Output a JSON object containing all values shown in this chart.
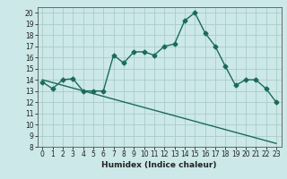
{
  "xlabel": "Humidex (Indice chaleur)",
  "xlim": [
    -0.5,
    23.5
  ],
  "ylim": [
    8,
    20.5
  ],
  "yticks": [
    8,
    9,
    10,
    11,
    12,
    13,
    14,
    15,
    16,
    17,
    18,
    19,
    20
  ],
  "xticks": [
    0,
    1,
    2,
    3,
    4,
    5,
    6,
    7,
    8,
    9,
    10,
    11,
    12,
    13,
    14,
    15,
    16,
    17,
    18,
    19,
    20,
    21,
    22,
    23
  ],
  "bg_color": "#cce8e8",
  "grid_color": "#aacccc",
  "line_color": "#1a6b5a",
  "curve1_x": [
    0,
    1,
    2,
    3,
    4,
    5,
    6,
    7,
    8,
    9,
    10,
    11,
    12,
    13,
    14,
    15,
    16,
    17,
    18,
    19,
    20,
    21,
    22,
    23
  ],
  "curve1_y": [
    13.8,
    13.2,
    14.0,
    14.1,
    13.0,
    13.0,
    13.0,
    16.2,
    15.5,
    16.5,
    16.5,
    16.2,
    17.0,
    17.2,
    19.3,
    20.0,
    18.2,
    17.0,
    15.2,
    13.5,
    14.0,
    14.0,
    13.2,
    12.0
  ],
  "curve2_x": [
    0,
    23
  ],
  "curve2_y": [
    14.0,
    8.3
  ],
  "marker": "D",
  "markersize": 2.5,
  "linewidth": 1.0,
  "tick_fontsize": 5.5,
  "xlabel_fontsize": 6.5
}
